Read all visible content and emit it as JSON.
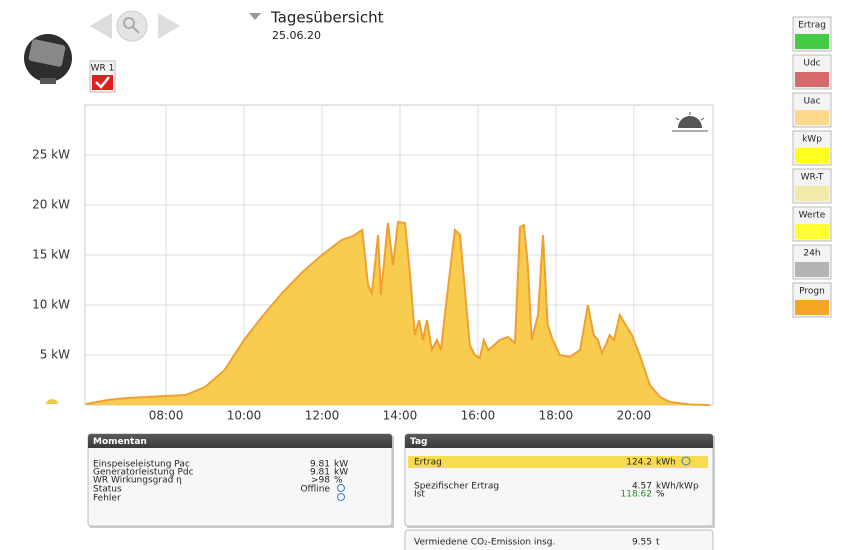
{
  "header": {
    "title": "Tagesübersicht",
    "date": "25.06.20",
    "inverter": "WR 1"
  },
  "buttons": [
    {
      "label": "Ertrag",
      "color": "#44cc44"
    },
    {
      "label": "Udc",
      "color": "#d46a6a"
    },
    {
      "label": "Uac",
      "color": "#ffd98a"
    },
    {
      "label": "kWp",
      "color": "#ffff22"
    },
    {
      "label": "WR-T",
      "color": "#f2eaa8"
    },
    {
      "label": "Werte",
      "color": "#ffff33"
    },
    {
      "label": "24h",
      "color": "#b4b4b4"
    },
    {
      "label": "Progn",
      "color": "#f5a623"
    }
  ],
  "chart_data": {
    "type": "area",
    "color": "#f7c83c",
    "line_color": "#f0a030",
    "x": [
      5.95,
      6.5,
      7.0,
      8.0,
      8.5,
      9.0,
      9.5,
      10.0,
      10.5,
      11.0,
      11.5,
      12.0,
      12.5,
      12.8,
      13.03,
      13.18,
      13.28,
      13.44,
      13.51,
      13.69,
      13.82,
      13.95,
      14.13,
      14.26,
      14.38,
      14.49,
      14.59,
      14.69,
      14.82,
      14.95,
      15.05,
      15.18,
      15.41,
      15.54,
      15.79,
      15.92,
      16.05,
      16.15,
      16.26,
      16.36,
      16.56,
      16.77,
      16.95,
      17.08,
      17.18,
      17.28,
      17.38,
      17.54,
      17.67,
      17.79,
      17.92,
      18.1,
      18.36,
      18.62,
      18.82,
      18.97,
      19.08,
      19.18,
      19.28,
      19.38,
      19.49,
      19.64,
      19.79,
      19.95,
      20.15,
      20.41,
      20.67,
      20.92,
      21.44,
      21.95
    ],
    "values": [
      0.1,
      0.5,
      0.7,
      0.9,
      1.0,
      1.8,
      3.5,
      6.5,
      9.0,
      11.3,
      13.3,
      15.0,
      16.5,
      16.9,
      17.5,
      12.0,
      11.2,
      17.0,
      11.0,
      18.2,
      14.0,
      18.3,
      18.2,
      13.0,
      7.0,
      8.5,
      6.5,
      8.5,
      5.5,
      6.5,
      5.5,
      10.0,
      17.5,
      17.0,
      6.0,
      5.0,
      4.7,
      6.5,
      5.5,
      5.8,
      6.5,
      6.8,
      6.2,
      17.8,
      18.0,
      14.0,
      6.5,
      9.0,
      17.0,
      8.0,
      6.5,
      5.0,
      4.8,
      5.5,
      10.0,
      7.0,
      6.5,
      5.2,
      6.0,
      7.0,
      6.5,
      9.0,
      8.0,
      7.0,
      5.0,
      2.0,
      0.8,
      0.3,
      0.05,
      0.0
    ],
    "xlim": [
      5.92,
      22.03
    ],
    "ylim": [
      0,
      30
    ],
    "xticks": [
      {
        "value": 8,
        "label": "08:00"
      },
      {
        "value": 10,
        "label": "10:00"
      },
      {
        "value": 12,
        "label": "12:00"
      },
      {
        "value": 14,
        "label": "14:00"
      },
      {
        "value": 16,
        "label": "16:00"
      },
      {
        "value": 18,
        "label": "18:00"
      },
      {
        "value": 20,
        "label": "20:00"
      }
    ],
    "yticks": [
      {
        "value": 5,
        "label": "5 kW"
      },
      {
        "value": 10,
        "label": "10 kW"
      },
      {
        "value": 15,
        "label": "15 kW"
      },
      {
        "value": 20,
        "label": "20 kW"
      },
      {
        "value": 25,
        "label": "25 kW"
      }
    ],
    "grid": true
  },
  "momentan": {
    "title": "Momentan",
    "rows": [
      {
        "label": "Einspeiseleistung Pac",
        "value": "9.81",
        "unit": "kW"
      },
      {
        "label": "Generatorleistung Pdc",
        "value": "9.81",
        "unit": "kW"
      },
      {
        "label": "WR Wirkungsgrad η",
        "value": ">98",
        "unit": "%"
      },
      {
        "label": "Status",
        "value": "Offline"
      },
      {
        "label": "Fehler"
      }
    ]
  },
  "tag": {
    "title": "Tag",
    "ertrag": {
      "label": "Ertrag",
      "value": "124.2",
      "unit": "kWh"
    },
    "rows": [
      {
        "label": "Spezifischer Ertrag",
        "value": "4.57",
        "unit": "kWh/kWp"
      },
      {
        "label": "Ist",
        "value": "118.62",
        "unit": "%",
        "value_color": "#2a8a2a"
      }
    ]
  },
  "co2": {
    "label": "Vermiedene CO₂-Emission insg.",
    "value": "9.55",
    "unit": "t"
  }
}
